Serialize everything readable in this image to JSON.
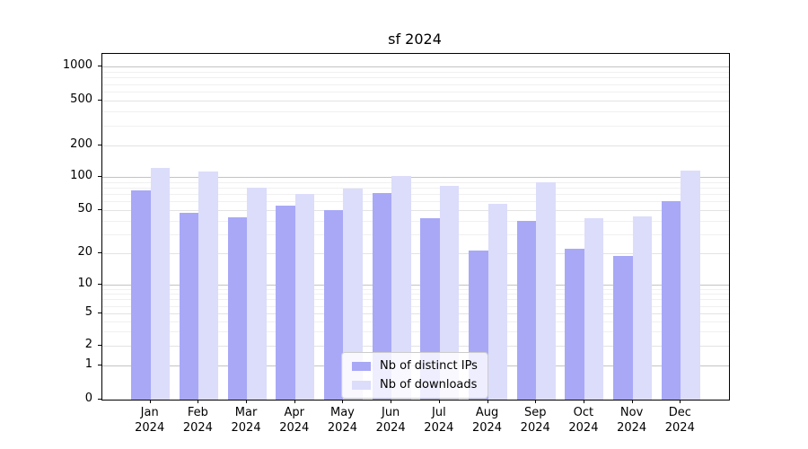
{
  "title": "sf 2024",
  "legend": {
    "items": [
      {
        "label": "Nb of distinct IPs",
        "color": "#a8a8f7"
      },
      {
        "label": "Nb of downloads",
        "color": "#dcdcfb"
      }
    ]
  },
  "y_axis": {
    "ticks": [
      {
        "value": 1000,
        "label": "1000"
      },
      {
        "value": 500,
        "label": "500"
      },
      {
        "value": 200,
        "label": "200"
      },
      {
        "value": 100,
        "label": "100"
      },
      {
        "value": 50,
        "label": "50"
      },
      {
        "value": 20,
        "label": "20"
      },
      {
        "value": 10,
        "label": "10"
      },
      {
        "value": 5,
        "label": "5"
      },
      {
        "value": 2,
        "label": "2"
      },
      {
        "value": 1,
        "label": "1"
      },
      {
        "value": 0,
        "label": "0"
      }
    ]
  },
  "x_axis": {
    "ticks": [
      {
        "month": "Jan",
        "year": "2024"
      },
      {
        "month": "Feb",
        "year": "2024"
      },
      {
        "month": "Mar",
        "year": "2024"
      },
      {
        "month": "Apr",
        "year": "2024"
      },
      {
        "month": "May",
        "year": "2024"
      },
      {
        "month": "Jun",
        "year": "2024"
      },
      {
        "month": "Jul",
        "year": "2024"
      },
      {
        "month": "Aug",
        "year": "2024"
      },
      {
        "month": "Sep",
        "year": "2024"
      },
      {
        "month": "Oct",
        "year": "2024"
      },
      {
        "month": "Nov",
        "year": "2024"
      },
      {
        "month": "Dec",
        "year": "2024"
      }
    ]
  },
  "chart_data": {
    "type": "bar",
    "title": "sf 2024",
    "categories": [
      "Jan 2024",
      "Feb 2024",
      "Mar 2024",
      "Apr 2024",
      "May 2024",
      "Jun 2024",
      "Jul 2024",
      "Aug 2024",
      "Sep 2024",
      "Oct 2024",
      "Nov 2024",
      "Dec 2024"
    ],
    "series": [
      {
        "name": "Nb of distinct IPs",
        "color": "#a8a8f7",
        "values": [
          75,
          47,
          43,
          55,
          50,
          72,
          42,
          21,
          40,
          22,
          19,
          60
        ]
      },
      {
        "name": "Nb of downloads",
        "color": "#dcdcfb",
        "values": [
          122,
          112,
          80,
          70,
          78,
          103,
          83,
          57,
          90,
          42,
          44,
          114
        ]
      }
    ],
    "xlabel": "",
    "ylabel": "",
    "yscale": "symlog",
    "ylim": [
      0,
      1000
    ],
    "y_tick_values": [
      1000,
      500,
      200,
      100,
      50,
      20,
      10,
      5,
      2,
      1,
      0
    ],
    "grid": true,
    "legend_position": "lower center"
  }
}
